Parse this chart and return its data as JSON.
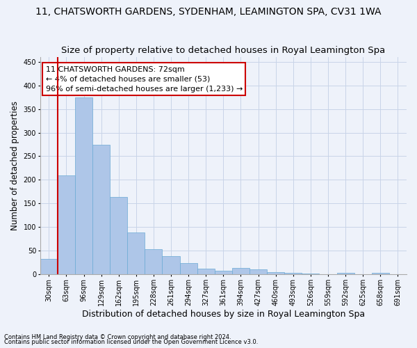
{
  "title": "11, CHATSWORTH GARDENS, SYDENHAM, LEAMINGTON SPA, CV31 1WA",
  "subtitle": "Size of property relative to detached houses in Royal Leamington Spa",
  "xlabel": "Distribution of detached houses by size in Royal Leamington Spa",
  "ylabel": "Number of detached properties",
  "footnote1": "Contains HM Land Registry data © Crown copyright and database right 2024.",
  "footnote2": "Contains public sector information licensed under the Open Government Licence v3.0.",
  "bar_values": [
    33,
    210,
    375,
    275,
    163,
    88,
    53,
    39,
    23,
    12,
    7,
    13,
    11,
    4,
    3,
    1,
    0,
    3,
    0,
    3
  ],
  "bin_labels": [
    "30sqm",
    "63sqm",
    "96sqm",
    "129sqm",
    "162sqm",
    "195sqm",
    "228sqm",
    "261sqm",
    "294sqm",
    "327sqm",
    "361sqm",
    "394sqm",
    "427sqm",
    "460sqm",
    "493sqm",
    "526sqm",
    "559sqm",
    "592sqm",
    "625sqm",
    "658sqm",
    "691sqm"
  ],
  "bar_color": "#aec6e8",
  "bar_edge_color": "#6aaad4",
  "grid_color": "#c8d4e8",
  "background_color": "#eef2fa",
  "vline_color": "#cc0000",
  "vline_pos": 1,
  "annotation_text": "11 CHATSWORTH GARDENS: 72sqm\n← 4% of detached houses are smaller (53)\n96% of semi-detached houses are larger (1,233) →",
  "annotation_box_color": "#cc0000",
  "ylim": [
    0,
    460
  ],
  "yticks": [
    0,
    50,
    100,
    150,
    200,
    250,
    300,
    350,
    400,
    450
  ],
  "title_fontsize": 10,
  "subtitle_fontsize": 9.5,
  "xlabel_fontsize": 9,
  "ylabel_fontsize": 8.5,
  "tick_fontsize": 7,
  "annot_fontsize": 8
}
